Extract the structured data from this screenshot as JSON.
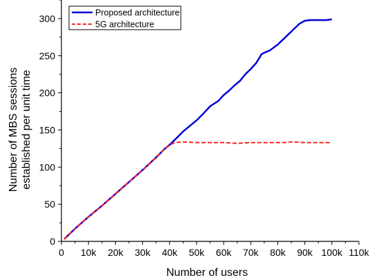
{
  "chart_data": {
    "type": "line",
    "xlabel": "Number of users",
    "ylabel_lines": [
      "Number of MBS sessions",
      "established per unit time"
    ],
    "xlim": [
      0,
      110000
    ],
    "ylim": [
      0,
      325
    ],
    "x_ticks": [
      {
        "value": 0,
        "label": "0"
      },
      {
        "value": 10000,
        "label": "10k"
      },
      {
        "value": 20000,
        "label": "20k"
      },
      {
        "value": 30000,
        "label": "30k"
      },
      {
        "value": 40000,
        "label": "40k"
      },
      {
        "value": 50000,
        "label": "50k"
      },
      {
        "value": 60000,
        "label": "60k"
      },
      {
        "value": 70000,
        "label": "70k"
      },
      {
        "value": 80000,
        "label": "80k"
      },
      {
        "value": 90000,
        "label": "90k"
      },
      {
        "value": 100000,
        "label": "100k"
      },
      {
        "value": 110000,
        "label": "110k"
      }
    ],
    "y_ticks": [
      {
        "value": 0,
        "label": "0"
      },
      {
        "value": 50,
        "label": "50"
      },
      {
        "value": 100,
        "label": "100"
      },
      {
        "value": 150,
        "label": "150"
      },
      {
        "value": 200,
        "label": "200"
      },
      {
        "value": 250,
        "label": "250"
      },
      {
        "value": 300,
        "label": "300"
      }
    ],
    "grid": false,
    "legend_position": "top-left",
    "series": [
      {
        "name": "Proposed architecture",
        "color": "#0000dd",
        "style": "solid",
        "x": [
          1000,
          5000,
          10000,
          15000,
          20000,
          25000,
          30000,
          35000,
          38000,
          40000,
          42000,
          45000,
          48000,
          50000,
          53000,
          55000,
          58000,
          60000,
          62000,
          64000,
          66000,
          68000,
          70000,
          72000,
          74000,
          75000,
          77000,
          80000,
          82000,
          84000,
          86000,
          88000,
          90000,
          92000,
          95000,
          98000,
          100000
        ],
        "values": [
          3,
          17,
          33,
          48,
          64,
          80,
          96,
          113,
          124,
          130,
          137,
          148,
          157,
          163,
          174,
          182,
          189,
          197,
          203,
          210,
          216,
          225,
          232,
          240,
          252,
          254,
          257,
          265,
          272,
          279,
          286,
          293,
          297,
          298,
          298,
          298,
          299
        ]
      },
      {
        "name": "5G architecture",
        "color": "#ff2222",
        "style": "dashed",
        "x": [
          1000,
          5000,
          10000,
          15000,
          20000,
          25000,
          30000,
          35000,
          38000,
          40000,
          42000,
          45000,
          50000,
          55000,
          60000,
          65000,
          70000,
          75000,
          80000,
          82000,
          85000,
          90000,
          95000,
          100000
        ],
        "values": [
          3,
          17,
          33,
          48,
          64,
          80,
          96,
          113,
          124,
          130,
          133,
          134,
          133,
          133,
          133,
          132,
          133,
          133,
          133,
          133,
          134,
          133,
          133,
          133
        ]
      }
    ]
  }
}
